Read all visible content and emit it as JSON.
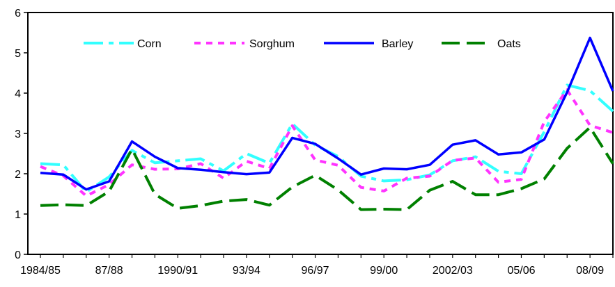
{
  "chart_data": {
    "type": "line",
    "title": "",
    "xlabel": "",
    "ylabel": "",
    "ylim": [
      0,
      6
    ],
    "y_ticks": [
      "0",
      "1",
      "2",
      "3",
      "4",
      "5",
      "6"
    ],
    "grid": false,
    "legend_position": "top",
    "x": [
      "1984/85",
      "1985/86",
      "1986/87",
      "87/88",
      "1988/89",
      "1989/90",
      "1990/91",
      "1991/92",
      "1992/93",
      "93/94",
      "1994/95",
      "1995/96",
      "96/97",
      "1997/98",
      "1998/99",
      "99/00",
      "2000/01",
      "2001/02",
      "2002/03",
      "2003/04",
      "2004/05",
      "05/06",
      "2006/07",
      "2007/08",
      "08/09",
      "2009/10"
    ],
    "x_tick_labels": [
      "1984/85",
      "87/88",
      "1990/91",
      "93/94",
      "96/97",
      "99/00",
      "2002/03",
      "05/06",
      "08/09"
    ],
    "series": [
      {
        "name": "Corn",
        "color": "#33ffff",
        "dash": "dash-dot",
        "values": [
          2.25,
          2.22,
          1.55,
          1.92,
          2.58,
          2.27,
          2.32,
          2.37,
          2.07,
          2.5,
          2.26,
          3.24,
          2.71,
          2.43,
          1.94,
          1.82,
          1.85,
          1.97,
          2.32,
          2.42,
          2.06,
          2.0,
          3.04,
          4.2,
          4.06,
          3.55
        ]
      },
      {
        "name": "Sorghum",
        "color": "#ff33ff",
        "dash": "dotted",
        "values": [
          2.18,
          1.95,
          1.45,
          1.73,
          2.22,
          2.11,
          2.12,
          2.25,
          1.89,
          2.31,
          2.13,
          3.19,
          2.34,
          2.21,
          1.66,
          1.57,
          1.89,
          1.94,
          2.33,
          2.39,
          1.79,
          1.86,
          3.29,
          4.08,
          3.2,
          3.02
        ]
      },
      {
        "name": "Barley",
        "color": "#0000ff",
        "dash": "solid",
        "values": [
          2.02,
          1.98,
          1.61,
          1.81,
          2.8,
          2.42,
          2.14,
          2.1,
          2.04,
          1.99,
          2.03,
          2.89,
          2.74,
          2.38,
          1.98,
          2.13,
          2.11,
          2.22,
          2.72,
          2.83,
          2.48,
          2.53,
          2.85,
          4.02,
          5.37,
          4.05
        ]
      },
      {
        "name": "Oats",
        "color": "#008000",
        "dash": "long-dash",
        "values": [
          1.21,
          1.23,
          1.21,
          1.56,
          2.61,
          1.49,
          1.14,
          1.21,
          1.32,
          1.36,
          1.22,
          1.67,
          1.96,
          1.6,
          1.11,
          1.12,
          1.11,
          1.59,
          1.81,
          1.48,
          1.48,
          1.63,
          1.87,
          2.63,
          3.15,
          2.25
        ]
      }
    ]
  }
}
